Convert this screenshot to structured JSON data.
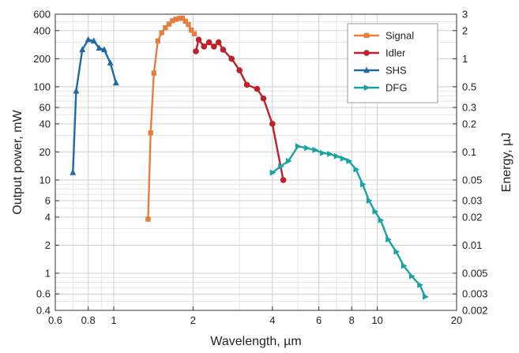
{
  "chart_data": {
    "type": "line",
    "xlabel": "Wavelength, µm",
    "ylabel": "Output power, mW",
    "y2label": "Energy, µJ",
    "x_scale": "log",
    "y_scale": "log",
    "y2_scale": "log",
    "xlim": [
      0.6,
      20
    ],
    "ylim": [
      0.4,
      600
    ],
    "y2lim": [
      0.002,
      3
    ],
    "x_ticks": [
      0.6,
      0.8,
      1,
      2,
      4,
      6,
      8,
      10,
      20
    ],
    "x_tick_labels": [
      "0.6",
      "0.8",
      "1",
      "2",
      "4",
      "6",
      "8",
      "10",
      "20"
    ],
    "y_ticks": [
      0.4,
      0.6,
      1,
      2,
      4,
      6,
      10,
      20,
      40,
      60,
      100,
      200,
      400,
      600
    ],
    "y_tick_labels": [
      "0.4",
      "0.6",
      "1",
      "2",
      "4",
      "6",
      "10",
      "20",
      "40",
      "60",
      "100",
      "200",
      "400",
      "600"
    ],
    "y2_ticks": [
      0.002,
      0.003,
      0.005,
      0.01,
      0.02,
      0.03,
      0.05,
      0.1,
      0.2,
      0.3,
      0.5,
      1,
      2,
      3
    ],
    "y2_tick_labels": [
      "0.002",
      "0.003",
      "0.005",
      "0.01",
      "0.02",
      "0.03",
      "0.05",
      "0.1",
      "0.2",
      "0.3",
      "0.5",
      "1",
      "2",
      "3"
    ],
    "grid": true,
    "legend": "top-right",
    "series": [
      {
        "name": "Signal",
        "color": "#e57f3f",
        "marker": "square",
        "x": [
          1.35,
          1.38,
          1.42,
          1.47,
          1.52,
          1.57,
          1.62,
          1.67,
          1.72,
          1.77,
          1.82,
          1.87,
          1.92,
          1.97,
          2.02
        ],
        "y": [
          3.8,
          32,
          140,
          310,
          380,
          430,
          470,
          510,
          530,
          540,
          545,
          505,
          465,
          405,
          370
        ]
      },
      {
        "name": "Idler",
        "color": "#c0202a",
        "marker": "circle",
        "x": [
          2.05,
          2.1,
          2.2,
          2.3,
          2.4,
          2.5,
          2.6,
          2.8,
          3.0,
          3.2,
          3.5,
          3.7,
          4.0,
          4.4
        ],
        "y": [
          240,
          320,
          270,
          300,
          270,
          300,
          250,
          200,
          150,
          105,
          95,
          75,
          40,
          10
        ]
      },
      {
        "name": "SHS",
        "color": "#1f6aa5",
        "marker": "triangle-up",
        "x": [
          0.7,
          0.72,
          0.76,
          0.8,
          0.84,
          0.88,
          0.92,
          0.97,
          1.02
        ],
        "y": [
          12,
          90,
          250,
          320,
          310,
          260,
          250,
          180,
          110
        ]
      },
      {
        "name": "DFG",
        "color": "#1aa3a3",
        "marker": "triangle-right",
        "x": [
          4.0,
          4.3,
          4.6,
          5.0,
          5.4,
          5.8,
          6.2,
          6.6,
          7.0,
          7.4,
          7.8,
          8.3,
          8.8,
          9.3,
          9.8,
          10.3,
          11.0,
          11.8,
          12.6,
          13.5,
          14.5,
          15.2
        ],
        "y": [
          12,
          14,
          16,
          23,
          22,
          21,
          19.5,
          19,
          18,
          17,
          16,
          13,
          9,
          6,
          4.6,
          3.7,
          2.3,
          1.7,
          1.2,
          0.93,
          0.75,
          0.56
        ]
      }
    ]
  }
}
